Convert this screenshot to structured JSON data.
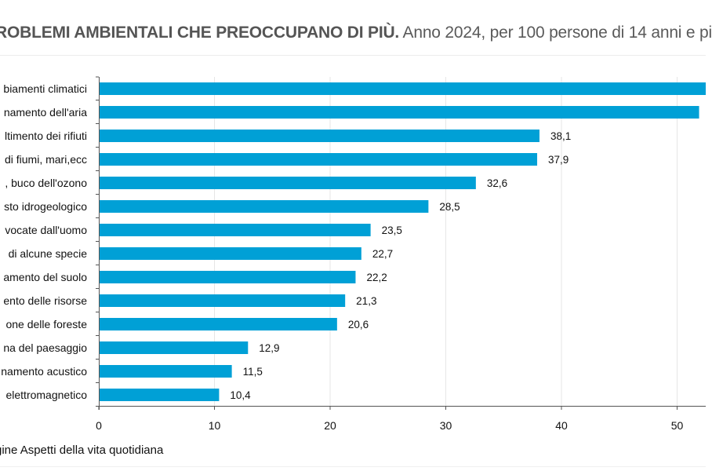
{
  "header": {
    "title_bold": "ROBLEMI AMBIENTALI CHE PREOCCUPANO DI PIÙ.",
    "title_rest": "Anno 2024, per 100 persone di 14 anni e pi"
  },
  "footer": {
    "source": "gine Aspetti della vita quotidiana"
  },
  "colors": {
    "bar": "#00a0d6",
    "grid": "#e6e6e6",
    "axis": "#555555",
    "text": "#111111"
  },
  "chart_data": {
    "type": "bar",
    "orientation": "horizontal",
    "title": "ROBLEMI AMBIENTALI CHE PREOCCUPANO DI PIÙ. Anno 2024, per 100 persone di 14 anni e pi",
    "categories": [
      "biamenti climatici",
      "namento dell'aria",
      "ltimento dei rifiuti",
      "di fiumi, mari,ecc",
      ", buco dell'ozono",
      "sto idrogeologico",
      "vocate dall'uomo",
      "di alcune specie",
      "amento del suolo",
      "ento delle risorse",
      "one delle foreste",
      "na del paesaggio",
      "namento acustico",
      "elettromagnetico"
    ],
    "values": [
      53.5,
      51.9,
      38.1,
      37.9,
      32.6,
      28.5,
      23.5,
      22.7,
      22.2,
      21.3,
      20.6,
      12.9,
      11.5,
      10.4
    ],
    "value_labels": [
      null,
      null,
      "38,1",
      "37,9",
      "32,6",
      "28,5",
      "23,5",
      "22,7",
      "22,2",
      "21,3",
      "20,6",
      "12,9",
      "11,5",
      "10,4"
    ],
    "x_ticks": [
      0,
      10,
      20,
      30,
      40,
      50
    ],
    "x_tick_labels": [
      "0",
      "10",
      "20",
      "30",
      "40",
      "50"
    ],
    "xlim": [
      0,
      52.5
    ],
    "xlabel": "",
    "ylabel": "",
    "grid": true
  }
}
